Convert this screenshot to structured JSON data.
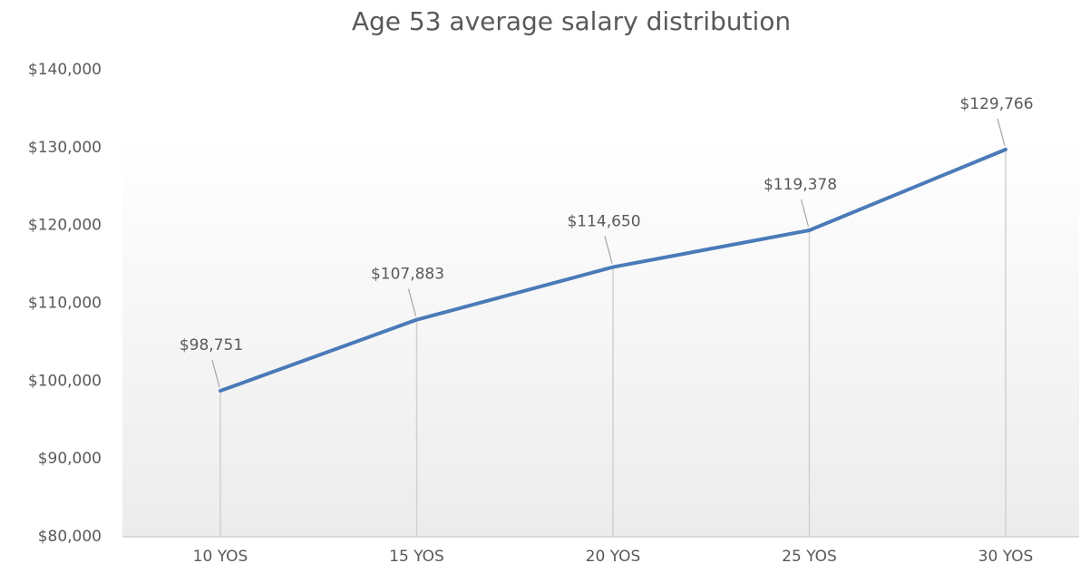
{
  "chart_data": {
    "type": "line",
    "title": "Age 53 average salary distribution",
    "categories": [
      "10 YOS",
      "15 YOS",
      "20 YOS",
      "25 YOS",
      "30 YOS"
    ],
    "series": [
      {
        "name": "Age 53",
        "color": "#4a7ab8",
        "values": [
          98751,
          107883,
          114650,
          119378,
          129766
        ],
        "value_labels": [
          "$98,751",
          "$107,883",
          "$114,650",
          "$119,378",
          "$129,766"
        ]
      }
    ],
    "ylim": [
      80000,
      140000
    ],
    "yticks": [
      {
        "value": 80000,
        "label": "$80,000"
      },
      {
        "value": 90000,
        "label": "$90,000"
      },
      {
        "value": 100000,
        "label": "$100,000"
      },
      {
        "value": 110000,
        "label": "$110,000"
      },
      {
        "value": 120000,
        "label": "$120,000"
      },
      {
        "value": 130000,
        "label": "$130,000"
      },
      {
        "value": 140000,
        "label": "$140,000"
      }
    ],
    "grid": false,
    "drop_lines": true
  }
}
